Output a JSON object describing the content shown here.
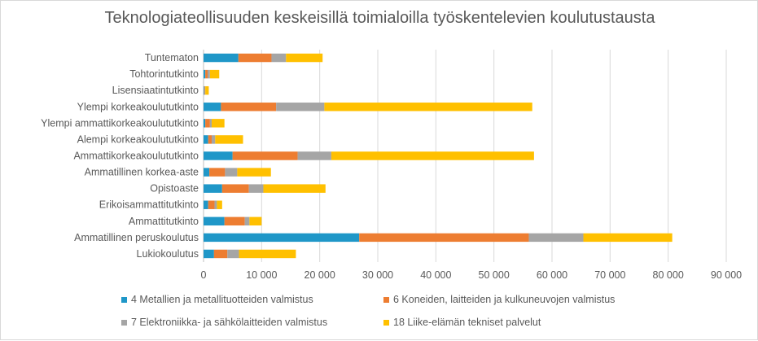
{
  "chart_data": {
    "type": "bar",
    "orientation": "horizontal",
    "stacked": true,
    "title": "Teknologiateollisuuden keskeisillä toimialoilla työskentelevien koulutustausta",
    "xlabel": "",
    "ylabel": "",
    "xlim": [
      0,
      90000
    ],
    "xticks": [
      0,
      10000,
      20000,
      30000,
      40000,
      50000,
      60000,
      70000,
      80000,
      90000
    ],
    "xtick_labels": [
      "0",
      "10 000",
      "20 000",
      "30 000",
      "40 000",
      "50 000",
      "60 000",
      "70 000",
      "80 000",
      "90 000"
    ],
    "grid": true,
    "legend_position": "bottom",
    "categories": [
      "Tuntematon",
      "Tohtorintutkinto",
      "Lisensiaatintutkinto",
      "Ylempi korkeakoulututkinto",
      "Ylempi ammattikorkeakoulututkinto",
      "Alempi korkeakoulututkinto",
      "Ammattikorkeakoulututkinto",
      "Ammatillinen korkea-aste",
      "Opistoaste",
      "Erikoisammattitutkinto",
      "Ammattitutkinto",
      "Ammatillinen peruskoulutus",
      "Lukiokoulutus"
    ],
    "series": [
      {
        "name": "4 Metallien ja metallituotteiden valmistus",
        "color": "#1f97c8",
        "values": [
          6000,
          300,
          100,
          3000,
          300,
          800,
          5000,
          1000,
          3200,
          800,
          3600,
          26800,
          1800
        ]
      },
      {
        "name": "6 Koneiden, laitteiden ja kulkuneuvojen valmistus",
        "color": "#ed7d31",
        "values": [
          5700,
          400,
          100,
          9500,
          800,
          600,
          11200,
          2700,
          4600,
          1100,
          3500,
          29200,
          2300
        ]
      },
      {
        "name": "7 Elektroniikka- ja sähkölaitteiden valmistus",
        "color": "#a5a5a5",
        "values": [
          2500,
          400,
          100,
          8300,
          300,
          600,
          5800,
          2100,
          2500,
          400,
          800,
          9400,
          2000
        ]
      },
      {
        "name": "18 Liike-elämän tekniset palvelut",
        "color": "#ffc000",
        "values": [
          6300,
          1600,
          600,
          35800,
          2200,
          4800,
          34900,
          5800,
          10700,
          900,
          2100,
          15300,
          9800
        ]
      }
    ]
  }
}
